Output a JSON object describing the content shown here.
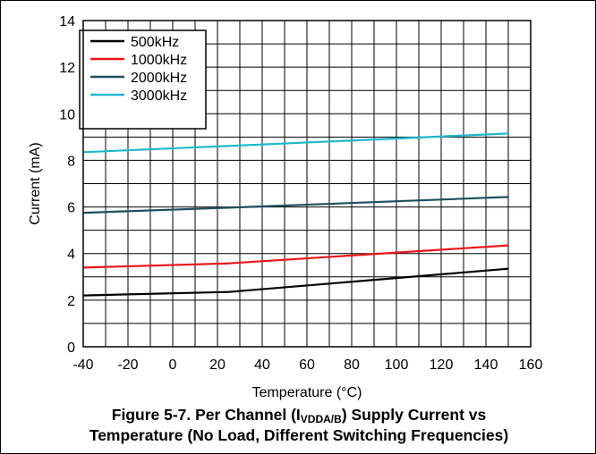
{
  "caption": {
    "line1_prefix": "Figure 5-7. Per Channel (I",
    "line1_sub": "VDDA/B",
    "line1_suffix": ") Supply Current vs",
    "line2": "Temperature (No Load, Different Switching Frequencies)"
  },
  "chart_data": {
    "type": "line",
    "xlabel": "Temperature (°C)",
    "ylabel": "Current (mA)",
    "xlim": [
      -40,
      160
    ],
    "ylim": [
      0,
      14
    ],
    "xticks": [
      -40,
      -20,
      0,
      20,
      40,
      60,
      80,
      100,
      120,
      140,
      160
    ],
    "yticks": [
      0,
      2,
      4,
      6,
      8,
      10,
      12,
      14
    ],
    "x_minor_step": 10,
    "y_minor_step": 1,
    "grid": true,
    "legend_position": "top-left",
    "series": [
      {
        "name": "500kHz",
        "color": "#000000",
        "x": [
          -40,
          25,
          150
        ],
        "y": [
          2.2,
          2.35,
          3.35
        ]
      },
      {
        "name": "1000kHz",
        "color": "#e8161b",
        "x": [
          -40,
          25,
          150
        ],
        "y": [
          3.4,
          3.58,
          4.35
        ]
      },
      {
        "name": "2000kHz",
        "color": "#1f4e5f",
        "x": [
          -40,
          25,
          150
        ],
        "y": [
          5.75,
          5.97,
          6.43
        ]
      },
      {
        "name": "3000kHz",
        "color": "#1bb8cc",
        "x": [
          -40,
          25,
          150
        ],
        "y": [
          8.35,
          8.62,
          9.15
        ]
      }
    ]
  }
}
